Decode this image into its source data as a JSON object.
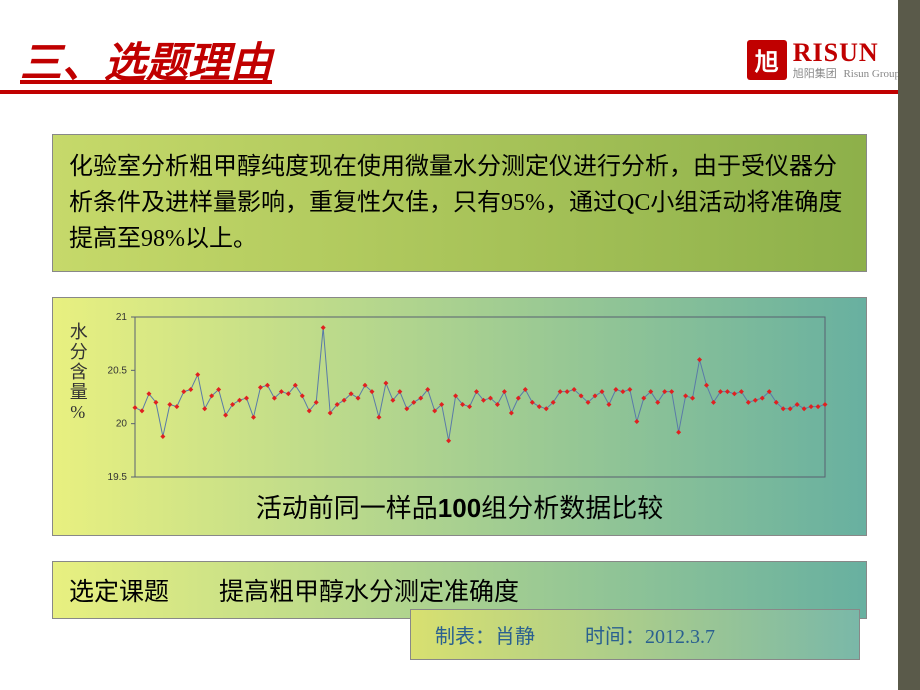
{
  "header": {
    "title": "三、选题理由",
    "logo": {
      "icon_text": "旭",
      "en": "RISUN",
      "zh_main": "旭阳集团",
      "zh_sub": "Risun Group"
    }
  },
  "layout": {
    "right_strip_color": "#5a5a4a",
    "red_line_color": "#c00000"
  },
  "desc": {
    "text": "化验室分析粗甲醇纯度现在使用微量水分测定仪进行分析，由于受仪器分析条件及进样量影响，重复性欠佳，只有95%，通过QC小组活动将准确度提高至98%以上。"
  },
  "chart": {
    "type": "line",
    "y_label": "水分含量%",
    "x_count": 100,
    "ylim": [
      19.5,
      21
    ],
    "yticks": [
      19.5,
      20,
      20.5,
      21
    ],
    "ytick_labels": [
      "19.5",
      "20",
      "20.5",
      "21"
    ],
    "line_color": "#5a7aa8",
    "marker_color": "#e02020",
    "marker_size": 2.5,
    "border_color": "#586070",
    "tick_font_size": 10,
    "background": "transparent",
    "caption_prefix": "活动前同一样品",
    "caption_num": "100",
    "caption_suffix": "组分析数据比较",
    "data": [
      20.15,
      20.12,
      20.28,
      20.2,
      19.88,
      20.18,
      20.16,
      20.3,
      20.32,
      20.46,
      20.14,
      20.26,
      20.32,
      20.08,
      20.18,
      20.22,
      20.24,
      20.06,
      20.34,
      20.36,
      20.24,
      20.3,
      20.28,
      20.36,
      20.26,
      20.12,
      20.2,
      20.9,
      20.1,
      20.18,
      20.22,
      20.28,
      20.24,
      20.36,
      20.3,
      20.06,
      20.38,
      20.22,
      20.3,
      20.14,
      20.2,
      20.24,
      20.32,
      20.12,
      20.18,
      19.84,
      20.26,
      20.18,
      20.16,
      20.3,
      20.22,
      20.24,
      20.18,
      20.3,
      20.1,
      20.24,
      20.32,
      20.2,
      20.16,
      20.14,
      20.2,
      20.3,
      20.3,
      20.32,
      20.26,
      20.2,
      20.26,
      20.3,
      20.18,
      20.32,
      20.3,
      20.32,
      20.02,
      20.24,
      20.3,
      20.2,
      20.3,
      20.3,
      19.92,
      20.26,
      20.24,
      20.6,
      20.36,
      20.2,
      20.3,
      20.3,
      20.28,
      20.3,
      20.2,
      20.22,
      20.24,
      20.3,
      20.2,
      20.14,
      20.14,
      20.18,
      20.14,
      20.16,
      20.16,
      20.18
    ]
  },
  "topic": {
    "label": "选定课题",
    "content": "提高粗甲醇水分测定准确度"
  },
  "footer": {
    "author_label": "制表：",
    "author": "肖静",
    "time_label": "时间：",
    "time": "2012.3.7"
  }
}
